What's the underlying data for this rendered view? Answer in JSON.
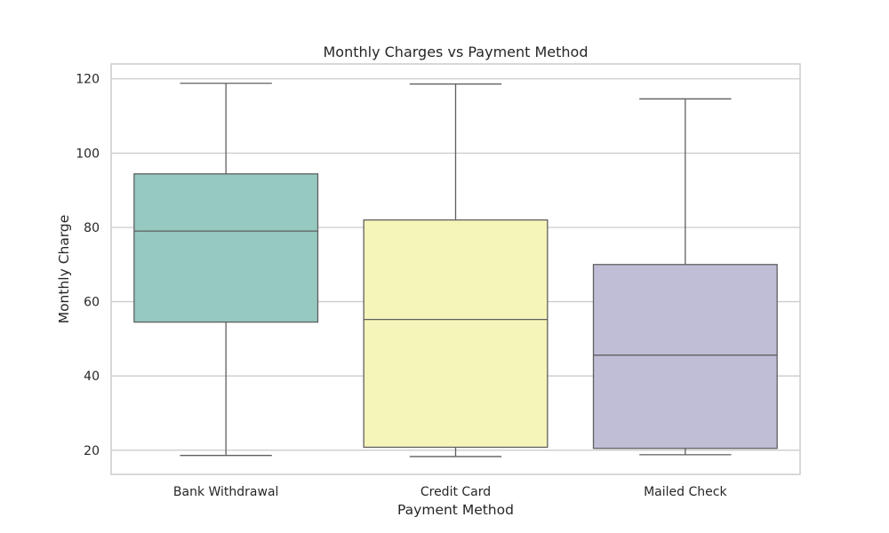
{
  "chart_data": {
    "type": "box",
    "title": "Monthly Charges vs Payment Method",
    "xlabel": "Payment Method",
    "ylabel": "Monthly Charge",
    "ylim": [
      13.5,
      124
    ],
    "yticks": [
      20,
      40,
      60,
      80,
      100,
      120
    ],
    "grid": "y",
    "categories": [
      "Bank Withdrawal",
      "Credit Card",
      "Mailed Check"
    ],
    "boxes": [
      {
        "name": "Bank Withdrawal",
        "whisker_low": 18.6,
        "q1": 54.5,
        "median": 79.0,
        "q3": 94.4,
        "whisker_high": 118.8,
        "color": "#96c9c0"
      },
      {
        "name": "Credit Card",
        "whisker_low": 18.3,
        "q1": 20.8,
        "median": 55.2,
        "q3": 82.0,
        "whisker_high": 118.6,
        "color": "#f6f5b9"
      },
      {
        "name": "Mailed Check",
        "whisker_low": 18.8,
        "q1": 20.5,
        "median": 45.6,
        "q3": 70.0,
        "whisker_high": 114.6,
        "color": "#c0bdd6"
      }
    ],
    "colors": {
      "grid": "#cccccc",
      "frame": "#cccccc",
      "line": "#5f5f5f",
      "text": "#262626"
    }
  }
}
